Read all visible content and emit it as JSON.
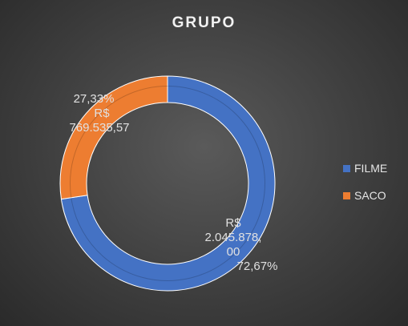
{
  "chart_data": {
    "type": "donut",
    "title": "GRUPO",
    "categories": [
      "FILME",
      "SACO"
    ],
    "values": [
      2045878.0,
      769535.57
    ],
    "value_labels": [
      "R$ 2.045.878,00",
      "R$ 769.535,57"
    ],
    "percent_labels": [
      "72,67%",
      "27,33%"
    ],
    "colors": [
      "#4472c4",
      "#ed7d31"
    ],
    "legend_position": "right",
    "data_label_lines": [
      [
        "R$",
        "2.045.878,",
        "00",
        "72,67%"
      ],
      [
        "27,33%",
        "R$",
        "769.535,57"
      ]
    ]
  },
  "legend": [
    {
      "label": "FILME",
      "color": "#4472c4"
    },
    {
      "label": "SACO",
      "color": "#ed7d31"
    }
  ]
}
